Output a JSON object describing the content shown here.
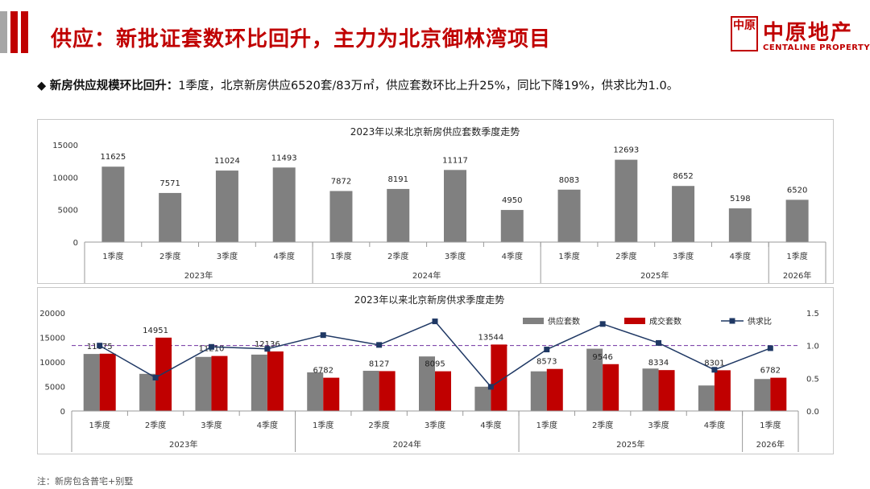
{
  "header": {
    "title": "供应：新批证套数环比回升，主力为北京御林湾项目",
    "logo_cn": "中原地产",
    "logo_en": "CENTALINE PROPERTY",
    "logo_mark_chars": "中原",
    "accent_color": "#c00000"
  },
  "bullet": {
    "icon": "diamond-icon",
    "bold": "新房供应规模环比回升：",
    "text": "1季度，北京新房供应6520套/83万㎡，供应套数环比上升25%，同比下降19%，供求比为1.0。"
  },
  "footnote": "注：新房包含普宅+别墅",
  "chart_data": [
    {
      "type": "bar",
      "title": "2023年以来北京新房供应套数季度走势",
      "categories": [
        "1季度",
        "2季度",
        "3季度",
        "4季度",
        "1季度",
        "2季度",
        "3季度",
        "4季度",
        "1季度",
        "2季度",
        "3季度",
        "4季度",
        "1季度"
      ],
      "groups": [
        {
          "label": "2023年",
          "count": 4
        },
        {
          "label": "2024年",
          "count": 4
        },
        {
          "label": "2025年",
          "count": 4
        },
        {
          "label": "2026年",
          "count": 1
        }
      ],
      "series": [
        {
          "name": "供应套数",
          "color": "#808080",
          "values": [
            11625,
            7571,
            11024,
            11493,
            7872,
            8191,
            11117,
            4950,
            8083,
            12693,
            8652,
            5198,
            6520
          ]
        }
      ],
      "ylim": [
        0,
        15000
      ],
      "yticks": [
        0,
        5000,
        10000,
        15000
      ]
    },
    {
      "type": "bar+line",
      "title": "2023年以来北京新房供求季度走势",
      "categories": [
        "1季度",
        "2季度",
        "3季度",
        "4季度",
        "1季度",
        "2季度",
        "3季度",
        "4季度",
        "1季度",
        "2季度",
        "3季度",
        "4季度",
        "1季度"
      ],
      "groups": [
        {
          "label": "2023年",
          "count": 4
        },
        {
          "label": "2024年",
          "count": 4
        },
        {
          "label": "2025年",
          "count": 4
        },
        {
          "label": "2026年",
          "count": 1
        }
      ],
      "series": [
        {
          "name": "供应套数",
          "color": "#808080",
          "values": [
            11625,
            7571,
            11024,
            11493,
            7872,
            8191,
            11117,
            4950,
            8083,
            12693,
            8652,
            5198,
            6520
          ]
        },
        {
          "name": "成交套数",
          "color": "#c00000",
          "values": [
            11675,
            14951,
            11210,
            12136,
            6782,
            8127,
            8095,
            13544,
            8573,
            9546,
            8334,
            8301,
            6782
          ]
        },
        {
          "name": "供求比",
          "color": "#1f3864",
          "axis": "right",
          "values": [
            1.0,
            0.51,
            0.98,
            0.95,
            1.16,
            1.01,
            1.37,
            0.37,
            0.94,
            1.33,
            1.04,
            0.63,
            0.96
          ]
        }
      ],
      "ylim": [
        0,
        20000
      ],
      "yticks": [
        0,
        5000,
        10000,
        15000,
        20000
      ],
      "y2lim": [
        0,
        1.5
      ],
      "y2ticks": [
        "0.0",
        "0.5",
        "1.0",
        "1.5"
      ],
      "reference_line": 1.0
    }
  ]
}
